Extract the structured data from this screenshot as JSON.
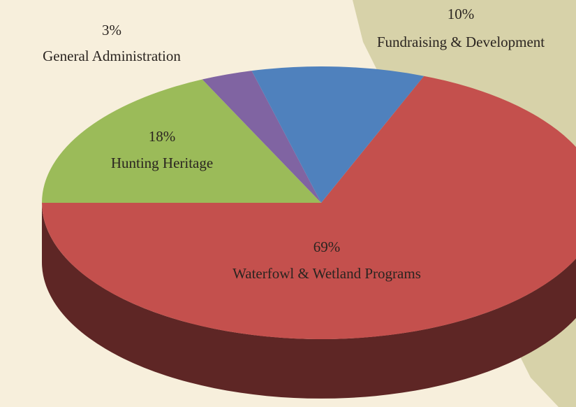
{
  "chart_data": {
    "type": "pie",
    "categories": [
      "Waterfowl & Wetland Programs",
      "Hunting Heritage",
      "General Administration",
      "Fundraising & Development"
    ],
    "values": [
      69,
      18,
      3,
      10
    ],
    "value_labels": [
      "69%",
      "18%",
      "3%",
      "10%"
    ],
    "colors": [
      "#c4504d",
      "#9bbb59",
      "#8064a2",
      "#4f81bd"
    ]
  }
}
